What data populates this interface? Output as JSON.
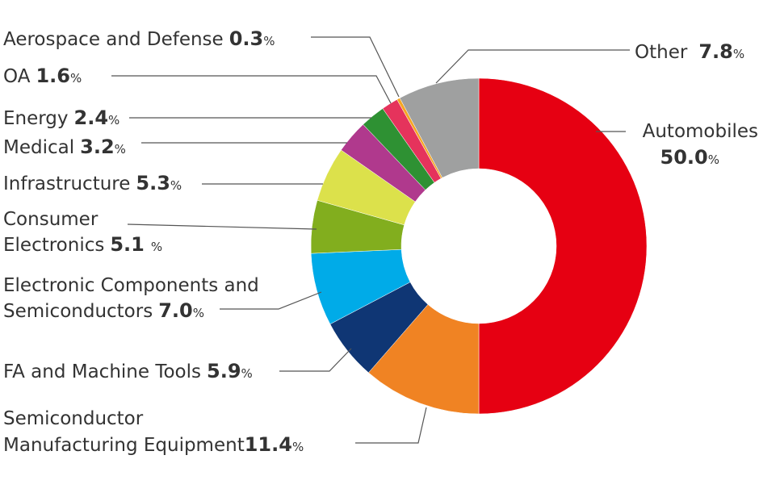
{
  "chart_data": {
    "type": "pie",
    "donut": true,
    "unit": "%",
    "slices": [
      {
        "label": "Automobiles",
        "value": 50.0,
        "color": "#e60012"
      },
      {
        "label": "Semiconductor Manufacturing Equipment",
        "value": 11.4,
        "color": "#f08323"
      },
      {
        "label": "FA and Machine Tools",
        "value": 5.9,
        "color": "#0f3674"
      },
      {
        "label": "Electronic Components and Semiconductors",
        "value": 7.0,
        "color": "#00abe8"
      },
      {
        "label": "Consumer Electronics",
        "value": 5.1,
        "color": "#82ae1e"
      },
      {
        "label": "Infrastructure",
        "value": 5.3,
        "color": "#dce14b"
      },
      {
        "label": "Medical",
        "value": 3.2,
        "color": "#b0398d"
      },
      {
        "label": "Energy",
        "value": 2.4,
        "color": "#2e9133"
      },
      {
        "label": "OA",
        "value": 1.6,
        "color": "#e5335c"
      },
      {
        "label": "Aerospace and Defense",
        "value": 0.3,
        "color": "#f5a623"
      },
      {
        "label": "Other",
        "value": 7.8,
        "color": "#9fa0a0"
      }
    ],
    "labels": {
      "automobiles": {
        "name": "Automobiles",
        "value": "50.0",
        "pct": "%"
      },
      "semi_mfg": {
        "line1": "Semiconductor",
        "line2": "Manufacturing Equipment",
        "value": "11.4",
        "pct": "%"
      },
      "fa": {
        "name": "FA and Machine Tools",
        "value": "5.9",
        "pct": "%"
      },
      "electronic": {
        "line1": "Electronic Components and",
        "line2": "Semiconductors",
        "value": "7.0",
        "pct": "%"
      },
      "consumer": {
        "line1": "Consumer",
        "line2": "Electronics",
        "value": "5.1",
        "pct": "%"
      },
      "infrastructure": {
        "name": "Infrastructure",
        "value": "5.3",
        "pct": "%"
      },
      "medical": {
        "name": "Medical",
        "value": "3.2",
        "pct": "%"
      },
      "energy": {
        "name": "Energy",
        "value": "2.4",
        "pct": "%"
      },
      "oa": {
        "name": "OA",
        "value": "1.6",
        "pct": "%"
      },
      "aerospace": {
        "name": "Aerospace and Defense",
        "value": "0.3",
        "pct": "%"
      },
      "other": {
        "name": "Other",
        "value": "7.8",
        "pct": "%"
      }
    }
  }
}
